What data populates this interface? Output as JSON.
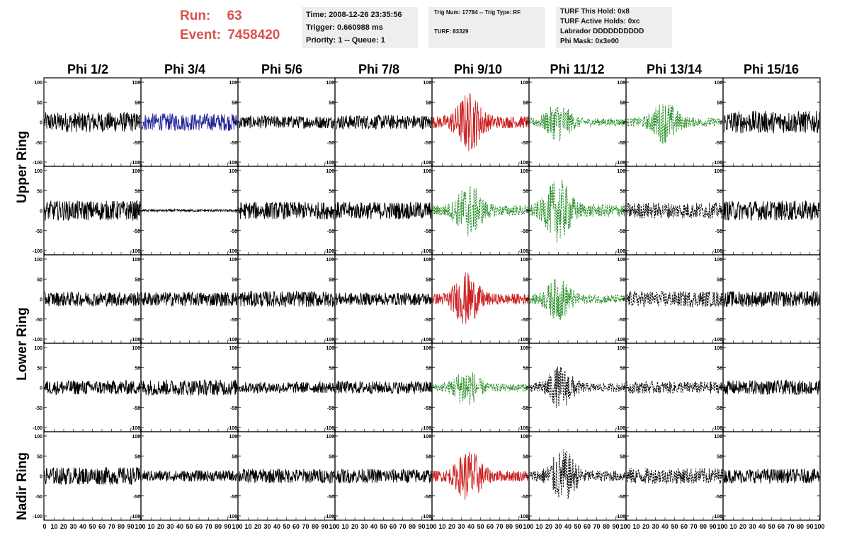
{
  "header": {
    "run_label": "Run:",
    "run_value": "63",
    "event_label": "Event:",
    "event_value": "7458420",
    "time_line": "Time: 2008-12-26 23:35:56",
    "trigger_line": "Trigger: 0.660988 ms",
    "priority_line": "Priority: 1 -- Queue: 1",
    "trig_line": "Trig Num: 17784 -- Trig Type: RF",
    "turf_line": "TURF: 83329",
    "turf_hold": "TURF This Hold: 0x8",
    "turf_active": "TURF Active Holds: 0xc",
    "labrador": "Labrador DDDDDDDDDD",
    "phi_mask": "Phi Mask: 0x3e00"
  },
  "columns": [
    "Phi 1/2",
    "Phi 3/4",
    "Phi 5/6",
    "Phi 7/8",
    "Phi 9/10",
    "Phi 11/12",
    "Phi 13/14",
    "Phi 15/16"
  ],
  "ring_labels": [
    "Upper Ring",
    "Lower Ring",
    "Nadir Ring"
  ],
  "colors": {
    "red_title": "#d9534f",
    "normal": "#000000",
    "blue": "#22229a",
    "red": "#cc2020",
    "green": "#1f8a1f",
    "black_dashed": "#000000"
  },
  "chart_data": {
    "type": "line",
    "xlim": [
      0,
      100
    ],
    "ylim": [
      -100,
      100
    ],
    "y_ticks": [
      100,
      50,
      0,
      -50,
      -100
    ],
    "x_tick_labels": [
      "0",
      "10",
      "20",
      "30",
      "40",
      "50",
      "60",
      "70",
      "80",
      "90",
      "100"
    ],
    "grid_rows": 5,
    "grid_cols": 8,
    "panels": [
      [
        {
          "style": "normal",
          "amp": 25,
          "spike": null
        },
        {
          "style": "blue",
          "amp": 22,
          "spike": null
        },
        {
          "style": "normal",
          "amp": 16,
          "spike": null
        },
        {
          "style": "normal",
          "amp": 18,
          "spike": null
        },
        {
          "style": "red",
          "amp": 28,
          "spike": 38
        },
        {
          "style": "green",
          "amp": 18,
          "spike": 30
        },
        {
          "style": "green",
          "amp": 20,
          "spike": 40
        },
        {
          "style": "normal",
          "amp": 28,
          "spike": null
        }
      ],
      [
        {
          "style": "normal",
          "amp": 25,
          "spike": null
        },
        {
          "style": "normal",
          "amp": 3,
          "spike": null
        },
        {
          "style": "normal",
          "amp": 22,
          "spike": null
        },
        {
          "style": "normal",
          "amp": 22,
          "spike": null
        },
        {
          "style": "green",
          "amp": 25,
          "spike": 38
        },
        {
          "style": "green",
          "amp": 30,
          "spike": 30
        },
        {
          "style": "black_dashed",
          "amp": 20,
          "spike": null
        },
        {
          "style": "normal",
          "amp": 25,
          "spike": null
        }
      ],
      [
        {
          "style": "normal",
          "amp": 18,
          "spike": null
        },
        {
          "style": "normal",
          "amp": 18,
          "spike": null
        },
        {
          "style": "normal",
          "amp": 20,
          "spike": null
        },
        {
          "style": "normal",
          "amp": 16,
          "spike": null
        },
        {
          "style": "red",
          "amp": 25,
          "spike": 35
        },
        {
          "style": "green",
          "amp": 20,
          "spike": 30
        },
        {
          "style": "black_dashed",
          "amp": 20,
          "spike": null
        },
        {
          "style": "normal",
          "amp": 20,
          "spike": null
        }
      ],
      [
        {
          "style": "normal",
          "amp": 18,
          "spike": null
        },
        {
          "style": "normal",
          "amp": 20,
          "spike": null
        },
        {
          "style": "normal",
          "amp": 14,
          "spike": null
        },
        {
          "style": "normal",
          "amp": 16,
          "spike": null
        },
        {
          "style": "green",
          "amp": 18,
          "spike": 35
        },
        {
          "style": "black_dashed",
          "amp": 20,
          "spike": 32
        },
        {
          "style": "black_dashed",
          "amp": 15,
          "spike": null
        },
        {
          "style": "normal",
          "amp": 18,
          "spike": null
        }
      ],
      [
        {
          "style": "normal",
          "amp": 22,
          "spike": null
        },
        {
          "style": "normal",
          "amp": 14,
          "spike": null
        },
        {
          "style": "normal",
          "amp": 18,
          "spike": null
        },
        {
          "style": "normal",
          "amp": 18,
          "spike": null
        },
        {
          "style": "red",
          "amp": 25,
          "spike": 38
        },
        {
          "style": "black_dashed",
          "amp": 25,
          "spike": 35
        },
        {
          "style": "black_dashed",
          "amp": 20,
          "spike": null
        },
        {
          "style": "normal",
          "amp": 18,
          "spike": null
        }
      ]
    ]
  }
}
